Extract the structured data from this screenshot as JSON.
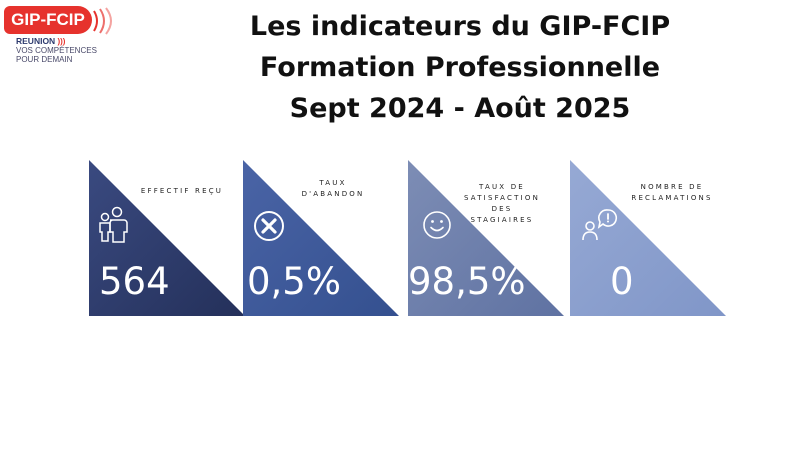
{
  "logo": {
    "name": "GIP-FCIP",
    "region": "REUNION",
    "region_arrows": ")))",
    "tagline_line1": "VOS COMPÉTENCES",
    "tagline_line2": "POUR DEMAIN",
    "brand_color": "#e6322d"
  },
  "title": {
    "line1": "Les indicateurs du GIP-FCIP",
    "line2": "Formation Professionnelle",
    "line3": "Sept 2024 - Août 2025"
  },
  "indicators": [
    {
      "label_lines": [
        "EFFECTIF REÇU"
      ],
      "value": "564",
      "icon": "people-icon",
      "color": "#2e3d6e"
    },
    {
      "label_lines": [
        "TAUX",
        "D'ABANDON"
      ],
      "value": "0,5%",
      "icon": "cross-circle-icon",
      "color": "#3e5a9a"
    },
    {
      "label_lines": [
        "TAUX DE",
        "SATISFACTION",
        "DES",
        "STAGIAIRES"
      ],
      "value": "98,5%",
      "icon": "smiley-icon",
      "color": "#6f80aa"
    },
    {
      "label_lines": [
        "NOMBRE DE",
        "RECLAMATIONS"
      ],
      "value": "0",
      "icon": "complaint-user-icon",
      "color": "#8ea3d0"
    }
  ]
}
